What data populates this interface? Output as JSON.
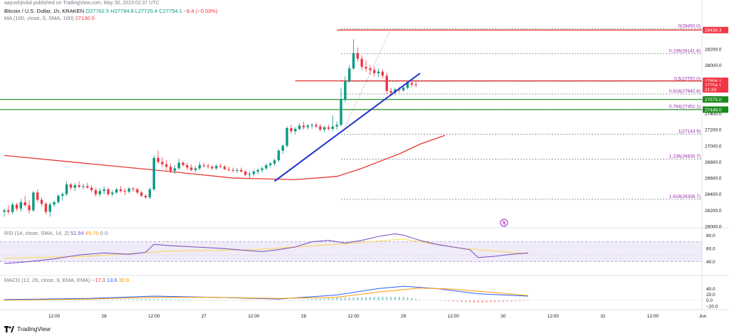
{
  "published_line": "aayushjindal published on TradingView.com, May 30, 2023 02:37 UTC",
  "symbol_line": {
    "symbol": "Bitcoin / U.S. Dollar, 1h, KRAKEN",
    "open": "O27762.5",
    "high": "H27794.8",
    "low": "L27725.4",
    "close": "C27754.1",
    "change": "−8.4 (−0.03%)"
  },
  "ma_line": {
    "label": "MA (100, close, 0, SMA, 100)",
    "value": "27130.0"
  },
  "rsi_line": {
    "label": "RSI (14, close, SMA, 14, 2)",
    "v1": "52.94",
    "v2": "49.70",
    "v3": "0",
    "v4": "0"
  },
  "macd_line": {
    "label": "MACD (12, 26, close, 9, EMA, EMA)",
    "v1": "−17.3",
    "v2": "13.6",
    "v3": "30.9"
  },
  "footer_brand": "TradingView",
  "colors": {
    "up": "#089981",
    "down": "#f23645",
    "trendline": "#2630d0",
    "ma": "#e53935",
    "rsi": "#7e57c2",
    "rsi_ma": "#ffd54f",
    "macd": "#2962ff",
    "signal": "#ff9800",
    "support": "#1b8a1b",
    "fib": "#787b86",
    "fib_label": "#9c27b0"
  },
  "chart_data": {
    "type": "candlestick",
    "symbol": "Bitcoin / U.S. Dollar",
    "exchange": "KRAKEN",
    "interval": "1h",
    "price_axis": {
      "ylim": [
        26000,
        28650
      ],
      "ticks": [
        "28200.0",
        "28000.0",
        "27600.0",
        "27400.0",
        "27200.0",
        "27000.0",
        "26800.0",
        "26600.0",
        "26400.0",
        "26200.0",
        "26000.0"
      ]
    },
    "x_ticks": [
      {
        "label": "12:00",
        "i": 12
      },
      {
        "label": "26",
        "i": 24
      },
      {
        "label": "12:00",
        "i": 36
      },
      {
        "label": "27",
        "i": 48
      },
      {
        "label": "12:00",
        "i": 60
      },
      {
        "label": "28",
        "i": 72
      },
      {
        "label": "12:00",
        "i": 84
      },
      {
        "label": "29",
        "i": 96
      },
      {
        "label": "12:00",
        "i": 108
      },
      {
        "label": "30",
        "i": 120
      },
      {
        "label": "12:00",
        "i": 132
      },
      {
        "label": "31",
        "i": 144
      },
      {
        "label": "12:00",
        "i": 156
      },
      {
        "label": "Jun",
        "i": 168
      }
    ],
    "candles": [
      [
        26180,
        26220,
        26120,
        26200
      ],
      [
        26200,
        26260,
        26150,
        26180
      ],
      [
        26180,
        26300,
        26150,
        26270
      ],
      [
        26270,
        26290,
        26190,
        26220
      ],
      [
        26220,
        26340,
        26180,
        26300
      ],
      [
        26300,
        26380,
        26250,
        26260
      ],
      [
        26260,
        26320,
        26160,
        26200
      ],
      [
        26200,
        26440,
        26180,
        26420
      ],
      [
        26420,
        26460,
        26300,
        26330
      ],
      [
        26330,
        26360,
        26250,
        26280
      ],
      [
        26280,
        26300,
        26150,
        26180
      ],
      [
        26180,
        26300,
        26120,
        26270
      ],
      [
        26270,
        26320,
        26240,
        26300
      ],
      [
        26300,
        26400,
        26280,
        26380
      ],
      [
        26380,
        26420,
        26320,
        26400
      ],
      [
        26400,
        26560,
        26380,
        26520
      ],
      [
        26520,
        26540,
        26450,
        26480
      ],
      [
        26480,
        26540,
        26440,
        26510
      ],
      [
        26510,
        26560,
        26470,
        26490
      ],
      [
        26490,
        26530,
        26460,
        26500
      ],
      [
        26500,
        26540,
        26470,
        26480
      ],
      [
        26480,
        26510,
        26420,
        26450
      ],
      [
        26450,
        26480,
        26370,
        26400
      ],
      [
        26400,
        26470,
        26370,
        26440
      ],
      [
        26440,
        26500,
        26400,
        26460
      ],
      [
        26460,
        26480,
        26380,
        26400
      ],
      [
        26400,
        26450,
        26370,
        26420
      ],
      [
        26420,
        26480,
        26400,
        26460
      ],
      [
        26460,
        26500,
        26420,
        26440
      ],
      [
        26440,
        26470,
        26390,
        26430
      ],
      [
        26430,
        26490,
        26410,
        26470
      ],
      [
        26470,
        26490,
        26430,
        26460
      ],
      [
        26460,
        26480,
        26400,
        26420
      ],
      [
        26420,
        26440,
        26360,
        26380
      ],
      [
        26380,
        26400,
        26340,
        26360
      ],
      [
        26360,
        26480,
        26340,
        26460
      ],
      [
        26460,
        26880,
        26440,
        26850
      ],
      [
        26850,
        26940,
        26780,
        26800
      ],
      [
        26800,
        26860,
        26740,
        26770
      ],
      [
        26770,
        26820,
        26700,
        26740
      ],
      [
        26740,
        26780,
        26660,
        26690
      ],
      [
        26690,
        26760,
        26650,
        26720
      ],
      [
        26720,
        26840,
        26700,
        26790
      ],
      [
        26790,
        26810,
        26740,
        26760
      ],
      [
        26760,
        26790,
        26700,
        26730
      ],
      [
        26730,
        26770,
        26680,
        26700
      ],
      [
        26700,
        26750,
        26670,
        26720
      ],
      [
        26720,
        26800,
        26700,
        26760
      ],
      [
        26760,
        26790,
        26730,
        26750
      ],
      [
        26750,
        26780,
        26720,
        26740
      ],
      [
        26740,
        26760,
        26700,
        26720
      ],
      [
        26720,
        26770,
        26700,
        26750
      ],
      [
        26750,
        26780,
        26720,
        26740
      ],
      [
        26740,
        26760,
        26700,
        26710
      ],
      [
        26710,
        26740,
        26680,
        26700
      ],
      [
        26700,
        26730,
        26670,
        26690
      ],
      [
        26690,
        26720,
        26660,
        26700
      ],
      [
        26700,
        26730,
        26670,
        26680
      ],
      [
        26680,
        26700,
        26620,
        26640
      ],
      [
        26640,
        26680,
        26590,
        26650
      ],
      [
        26650,
        26700,
        26620,
        26680
      ],
      [
        26680,
        26720,
        26640,
        26700
      ],
      [
        26700,
        26740,
        26670,
        26720
      ],
      [
        26720,
        26780,
        26700,
        26760
      ],
      [
        26760,
        26800,
        26730,
        26780
      ],
      [
        26780,
        26840,
        26750,
        26820
      ],
      [
        26820,
        26960,
        26800,
        26940
      ],
      [
        26940,
        27020,
        26900,
        27000
      ],
      [
        27000,
        27240,
        26980,
        27220
      ],
      [
        27220,
        27260,
        27150,
        27180
      ],
      [
        27180,
        27230,
        27140,
        27210
      ],
      [
        27210,
        27280,
        27190,
        27250
      ],
      [
        27250,
        27300,
        27200,
        27230
      ],
      [
        27230,
        27270,
        27200,
        27250
      ],
      [
        27250,
        27280,
        27210,
        27260
      ],
      [
        27260,
        27290,
        27220,
        27240
      ],
      [
        27240,
        27270,
        27180,
        27200
      ],
      [
        27200,
        27250,
        27170,
        27230
      ],
      [
        27230,
        27260,
        27190,
        27210
      ],
      [
        27210,
        27380,
        27180,
        27240
      ],
      [
        27240,
        27300,
        27200,
        27260
      ],
      [
        27260,
        27720,
        27240,
        27580
      ],
      [
        27580,
        27860,
        27540,
        27800
      ],
      [
        27800,
        28000,
        27780,
        27960
      ],
      [
        27960,
        28320,
        27940,
        28150
      ],
      [
        28150,
        28220,
        28040,
        28080
      ],
      [
        28080,
        28120,
        27940,
        27980
      ],
      [
        27980,
        28060,
        27920,
        27960
      ],
      [
        27960,
        28000,
        27880,
        27940
      ],
      [
        27940,
        27980,
        27860,
        27900
      ],
      [
        27900,
        27960,
        27850,
        27920
      ],
      [
        27920,
        27950,
        27840,
        27870
      ],
      [
        27870,
        27900,
        27640,
        27680
      ],
      [
        27680,
        27720,
        27620,
        27660
      ],
      [
        27660,
        27720,
        27630,
        27700
      ],
      [
        27700,
        27730,
        27660,
        27690
      ],
      [
        27690,
        27740,
        27670,
        27720
      ],
      [
        27720,
        27790,
        27700,
        27780
      ],
      [
        27780,
        27800,
        27730,
        27760
      ],
      [
        27760,
        27795,
        27725,
        27754
      ]
    ],
    "ma100": [
      [
        0,
        26880
      ],
      [
        20,
        26780
      ],
      [
        40,
        26680
      ],
      [
        55,
        26600
      ],
      [
        70,
        26580
      ],
      [
        80,
        26620
      ],
      [
        86,
        26720
      ],
      [
        90,
        26800
      ],
      [
        95,
        26900
      ],
      [
        100,
        27020
      ],
      [
        106,
        27130
      ]
    ],
    "trendline": [
      [
        65,
        26560
      ],
      [
        100,
        27900
      ]
    ],
    "support_lines": [
      27575,
      27449
    ],
    "resistance_lines": [
      28436,
      27806
    ],
    "fib_levels": [
      {
        "label": "0(28450.0)",
        "price": 28450
      },
      {
        "label": "0.236(28141.8)",
        "price": 28141.8
      },
      {
        "label": "0.5(27797.0)",
        "price": 27797
      },
      {
        "label": "0.618(27642.8)",
        "price": 27642.8
      },
      {
        "label": "0.764(27452.1)",
        "price": 27452.1
      },
      {
        "label": "1(27143.9)",
        "price": 27143.9
      },
      {
        "label": "1.236(26835.7)",
        "price": 26835.7
      },
      {
        "label": "1.618(26336.7)",
        "price": 26336.7
      }
    ],
    "price_tags": [
      {
        "label": "28436.3",
        "price": 28436,
        "color": "#f23645"
      },
      {
        "label": "27806.1",
        "price": 27806,
        "color": "#f23645"
      },
      {
        "label": "27754.1",
        "price": 27754,
        "color": "#f23645"
      },
      {
        "label": "21:33",
        "price": 27700,
        "color": "#f23645"
      },
      {
        "label": "27575.0",
        "price": 27575,
        "color": "#1b8a1b"
      },
      {
        "label": "27449.0",
        "price": 27449,
        "color": "#1b8a1b"
      }
    ],
    "rsi": {
      "ylim": [
        20,
        90
      ],
      "ticks": [
        "80.0",
        "60.0",
        "40.0"
      ],
      "band": [
        40,
        70
      ],
      "values": [
        [
          0,
          37
        ],
        [
          6,
          40
        ],
        [
          12,
          44
        ],
        [
          18,
          50
        ],
        [
          24,
          53
        ],
        [
          30,
          51
        ],
        [
          34,
          54
        ],
        [
          36,
          66
        ],
        [
          40,
          64
        ],
        [
          46,
          62
        ],
        [
          52,
          60
        ],
        [
          58,
          57
        ],
        [
          62,
          55
        ],
        [
          66,
          58
        ],
        [
          70,
          62
        ],
        [
          74,
          70
        ],
        [
          78,
          72
        ],
        [
          82,
          68
        ],
        [
          86,
          72
        ],
        [
          90,
          78
        ],
        [
          94,
          82
        ],
        [
          96,
          80
        ],
        [
          100,
          72
        ],
        [
          104,
          66
        ],
        [
          108,
          62
        ],
        [
          112,
          58
        ],
        [
          114,
          46
        ],
        [
          118,
          48
        ],
        [
          122,
          51
        ],
        [
          126,
          53
        ]
      ],
      "ma_values": [
        [
          0,
          45
        ],
        [
          20,
          48
        ],
        [
          40,
          56
        ],
        [
          60,
          58
        ],
        [
          80,
          66
        ],
        [
          96,
          74
        ],
        [
          110,
          60
        ],
        [
          126,
          52
        ]
      ]
    },
    "macd": {
      "ylim": [
        -30,
        85
      ],
      "ticks": [
        "40.0",
        "20.0",
        "0.0",
        "−20.0"
      ],
      "macd_values": [
        [
          0,
          2
        ],
        [
          20,
          6
        ],
        [
          36,
          14
        ],
        [
          50,
          10
        ],
        [
          66,
          4
        ],
        [
          80,
          18
        ],
        [
          90,
          40
        ],
        [
          96,
          48
        ],
        [
          104,
          40
        ],
        [
          114,
          22
        ],
        [
          126,
          14
        ]
      ],
      "signal_values": [
        [
          0,
          0
        ],
        [
          20,
          4
        ],
        [
          36,
          10
        ],
        [
          50,
          10
        ],
        [
          66,
          6
        ],
        [
          80,
          10
        ],
        [
          90,
          28
        ],
        [
          100,
          42
        ],
        [
          108,
          38
        ],
        [
          118,
          26
        ],
        [
          126,
          16
        ]
      ]
    }
  }
}
